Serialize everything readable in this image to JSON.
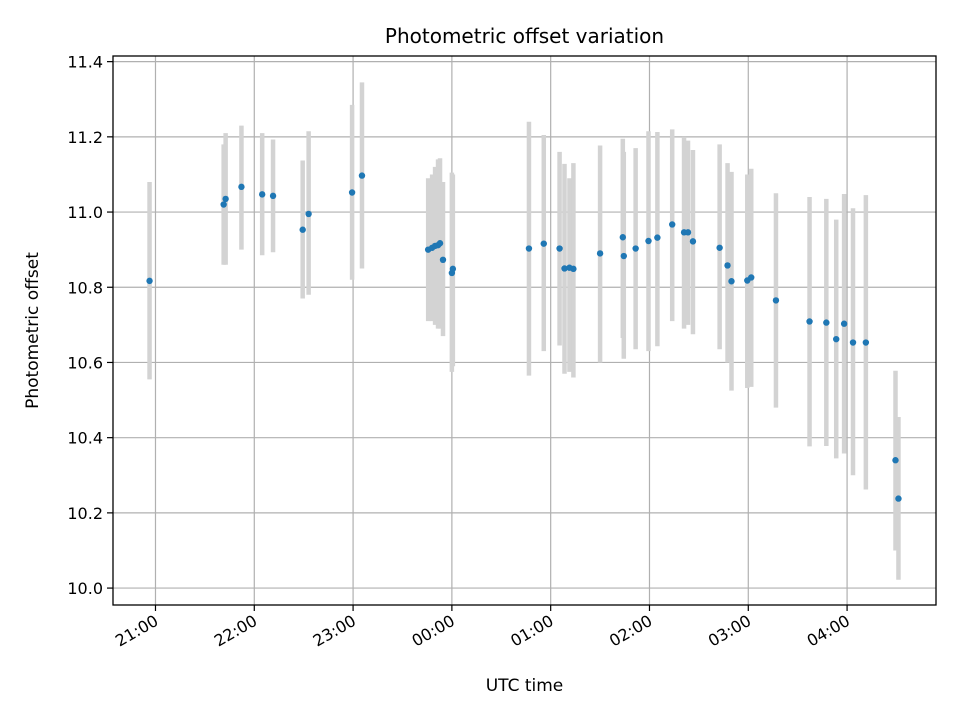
{
  "chart_data": {
    "type": "scatter",
    "title": "Photometric offset variation",
    "xlabel": "UTC time",
    "ylabel": "Photometric offset",
    "x_unit": "UTC hour (values past midnight continue 24+)",
    "xlim": [
      20.57,
      28.9
    ],
    "ylim": [
      9.955,
      11.415
    ],
    "grid": true,
    "xticks": [
      {
        "value": 21,
        "label": "21:00"
      },
      {
        "value": 22,
        "label": "22:00"
      },
      {
        "value": 23,
        "label": "23:00"
      },
      {
        "value": 24,
        "label": "00:00"
      },
      {
        "value": 25,
        "label": "01:00"
      },
      {
        "value": 26,
        "label": "02:00"
      },
      {
        "value": 27,
        "label": "03:00"
      },
      {
        "value": 28,
        "label": "04:00"
      }
    ],
    "yticks": [
      {
        "value": 10.0,
        "label": "10.0"
      },
      {
        "value": 10.2,
        "label": "10.2"
      },
      {
        "value": 10.4,
        "label": "10.4"
      },
      {
        "value": 10.6,
        "label": "10.6"
      },
      {
        "value": 10.8,
        "label": "10.8"
      },
      {
        "value": 11.0,
        "label": "11.0"
      },
      {
        "value": 11.2,
        "label": "11.2"
      },
      {
        "value": 11.4,
        "label": "11.4"
      }
    ],
    "colors": {
      "point": "#1f77b4",
      "errorbar": "#d3d3d3",
      "grid": "#b0b0b0"
    },
    "points": [
      {
        "x": 20.94,
        "y": 10.817,
        "lo": 10.555,
        "hi": 11.08
      },
      {
        "x": 21.69,
        "y": 11.02,
        "lo": 10.86,
        "hi": 11.18
      },
      {
        "x": 21.71,
        "y": 11.035,
        "lo": 10.86,
        "hi": 11.21
      },
      {
        "x": 21.87,
        "y": 11.067,
        "lo": 10.9,
        "hi": 11.23
      },
      {
        "x": 22.08,
        "y": 11.047,
        "lo": 10.885,
        "hi": 11.21
      },
      {
        "x": 22.19,
        "y": 11.043,
        "lo": 10.893,
        "hi": 11.193
      },
      {
        "x": 22.49,
        "y": 10.953,
        "lo": 10.77,
        "hi": 11.137
      },
      {
        "x": 22.55,
        "y": 10.995,
        "lo": 10.78,
        "hi": 11.215
      },
      {
        "x": 22.99,
        "y": 11.052,
        "lo": 10.82,
        "hi": 11.285
      },
      {
        "x": 23.09,
        "y": 11.097,
        "lo": 10.85,
        "hi": 11.345
      },
      {
        "x": 23.76,
        "y": 10.9,
        "lo": 10.71,
        "hi": 11.09
      },
      {
        "x": 23.8,
        "y": 10.905,
        "lo": 10.71,
        "hi": 11.1
      },
      {
        "x": 23.83,
        "y": 10.91,
        "lo": 10.7,
        "hi": 11.12
      },
      {
        "x": 23.86,
        "y": 10.912,
        "lo": 10.69,
        "hi": 11.14
      },
      {
        "x": 23.88,
        "y": 10.917,
        "lo": 10.69,
        "hi": 11.143
      },
      {
        "x": 23.91,
        "y": 10.873,
        "lo": 10.67,
        "hi": 11.08
      },
      {
        "x": 24.0,
        "y": 10.838,
        "lo": 10.575,
        "hi": 11.105
      },
      {
        "x": 24.01,
        "y": 10.849,
        "lo": 10.59,
        "hi": 11.1
      },
      {
        "x": 24.78,
        "y": 10.903,
        "lo": 10.565,
        "hi": 11.24
      },
      {
        "x": 24.93,
        "y": 10.916,
        "lo": 10.63,
        "hi": 11.205
      },
      {
        "x": 25.09,
        "y": 10.903,
        "lo": 10.645,
        "hi": 11.16
      },
      {
        "x": 25.14,
        "y": 10.85,
        "lo": 10.57,
        "hi": 11.128
      },
      {
        "x": 25.19,
        "y": 10.852,
        "lo": 10.575,
        "hi": 11.09
      },
      {
        "x": 25.23,
        "y": 10.849,
        "lo": 10.56,
        "hi": 11.13
      },
      {
        "x": 25.5,
        "y": 10.89,
        "lo": 10.6,
        "hi": 11.177
      },
      {
        "x": 25.73,
        "y": 10.933,
        "lo": 10.665,
        "hi": 11.195
      },
      {
        "x": 25.74,
        "y": 10.883,
        "lo": 10.61,
        "hi": 11.16
      },
      {
        "x": 25.86,
        "y": 10.903,
        "lo": 10.635,
        "hi": 11.17
      },
      {
        "x": 25.99,
        "y": 10.923,
        "lo": 10.63,
        "hi": 11.215
      },
      {
        "x": 26.08,
        "y": 10.932,
        "lo": 10.643,
        "hi": 11.213
      },
      {
        "x": 26.23,
        "y": 10.967,
        "lo": 10.71,
        "hi": 11.22
      },
      {
        "x": 26.35,
        "y": 10.946,
        "lo": 10.69,
        "hi": 11.2
      },
      {
        "x": 26.39,
        "y": 10.946,
        "lo": 10.7,
        "hi": 11.19
      },
      {
        "x": 26.44,
        "y": 10.922,
        "lo": 10.675,
        "hi": 11.165
      },
      {
        "x": 26.71,
        "y": 10.905,
        "lo": 10.635,
        "hi": 11.18
      },
      {
        "x": 26.79,
        "y": 10.858,
        "lo": 10.6,
        "hi": 11.13
      },
      {
        "x": 26.83,
        "y": 10.816,
        "lo": 10.525,
        "hi": 11.107
      },
      {
        "x": 26.99,
        "y": 10.818,
        "lo": 10.532,
        "hi": 11.1
      },
      {
        "x": 27.03,
        "y": 10.826,
        "lo": 10.535,
        "hi": 11.115
      },
      {
        "x": 27.28,
        "y": 10.765,
        "lo": 10.48,
        "hi": 11.05
      },
      {
        "x": 27.62,
        "y": 10.709,
        "lo": 10.377,
        "hi": 11.04
      },
      {
        "x": 27.79,
        "y": 10.706,
        "lo": 10.378,
        "hi": 11.035
      },
      {
        "x": 27.89,
        "y": 10.662,
        "lo": 10.345,
        "hi": 10.98
      },
      {
        "x": 27.97,
        "y": 10.703,
        "lo": 10.358,
        "hi": 11.048
      },
      {
        "x": 28.06,
        "y": 10.653,
        "lo": 10.3,
        "hi": 11.01
      },
      {
        "x": 28.19,
        "y": 10.653,
        "lo": 10.262,
        "hi": 11.045
      },
      {
        "x": 28.49,
        "y": 10.34,
        "lo": 10.1,
        "hi": 10.578
      },
      {
        "x": 28.52,
        "y": 10.238,
        "lo": 10.022,
        "hi": 10.455
      }
    ]
  }
}
